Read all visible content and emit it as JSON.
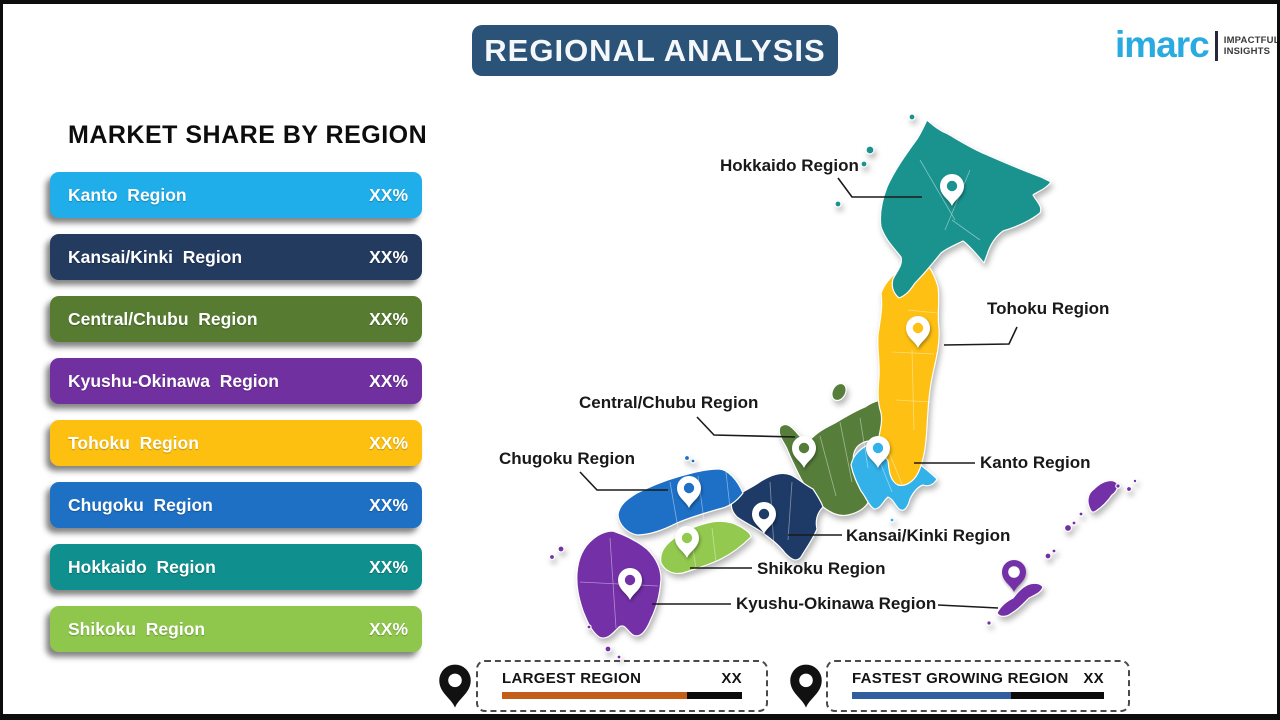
{
  "header": {
    "title": "REGIONAL ANALYSIS"
  },
  "logo": {
    "brand": "imarc",
    "tagline_line1": "IMPACTFUL",
    "tagline_line2": "INSIGHTS"
  },
  "theme": {
    "title_bg": "#2b5277",
    "logo_blue": "#29abe2",
    "frame_border": "#0d0d0d"
  },
  "panel": {
    "heading": "MARKET SHARE BY REGION",
    "bars": [
      {
        "label": "Kanto  Region",
        "value": "XX%",
        "color": "#1faee9"
      },
      {
        "label": "Kansai/Kinki  Region",
        "value": "XX%",
        "color": "#233b5f"
      },
      {
        "label": "Central/Chubu  Region",
        "value": "XX%",
        "color": "#567b31"
      },
      {
        "label": "Kyushu-Okinawa  Region",
        "value": "XX%",
        "color": "#7030a0"
      },
      {
        "label": "Tohoku  Region",
        "value": "XX%",
        "color": "#fdc010"
      },
      {
        "label": "Chugoku  Region",
        "value": "XX%",
        "color": "#1d70c4"
      },
      {
        "label": "Hokkaido  Region",
        "value": "XX%",
        "color": "#0f908e"
      },
      {
        "label": "Shikoku  Region",
        "value": "XX%",
        "color": "#8ec74b"
      }
    ]
  },
  "map": {
    "region_colors": {
      "hokkaido": "#1a938f",
      "tohoku": "#fdc013",
      "kanto": "#33b1e9",
      "chubu": "#567d3a",
      "kansai": "#1e3a66",
      "chugoku": "#1d70c6",
      "shikoku": "#92c94e",
      "kyushu": "#7430a6"
    },
    "labels": [
      {
        "id": "hokkaido",
        "text": "Hokkaido Region"
      },
      {
        "id": "tohoku",
        "text": "Tohoku Region"
      },
      {
        "id": "chubu",
        "text": "Central/Chubu Region"
      },
      {
        "id": "chugoku",
        "text": "Chugoku Region"
      },
      {
        "id": "kanto",
        "text": "Kanto Region"
      },
      {
        "id": "kansai",
        "text": "Kansai/Kinki Region"
      },
      {
        "id": "shikoku",
        "text": "Shikoku Region"
      },
      {
        "id": "kyushu",
        "text": "Kyushu-Okinawa Region"
      }
    ]
  },
  "footer": {
    "largest": {
      "label": "LARGEST REGION",
      "value": "XX",
      "bar_color": "#c35e18",
      "bar_fill_pct": 77
    },
    "fastest": {
      "label": "FASTEST GROWING REGION",
      "value": "XX",
      "bar_color": "#305e9e",
      "bar_fill_pct": 63
    }
  },
  "chart_data": {
    "type": "bar",
    "title": "MARKET SHARE BY REGION",
    "categories": [
      "Kanto Region",
      "Kansai/Kinki Region",
      "Central/Chubu Region",
      "Kyushu-Okinawa Region",
      "Tohoku Region",
      "Chugoku Region",
      "Hokkaido Region",
      "Shikoku Region"
    ],
    "values": [
      "XX%",
      "XX%",
      "XX%",
      "XX%",
      "XX%",
      "XX%",
      "XX%",
      "XX%"
    ]
  }
}
